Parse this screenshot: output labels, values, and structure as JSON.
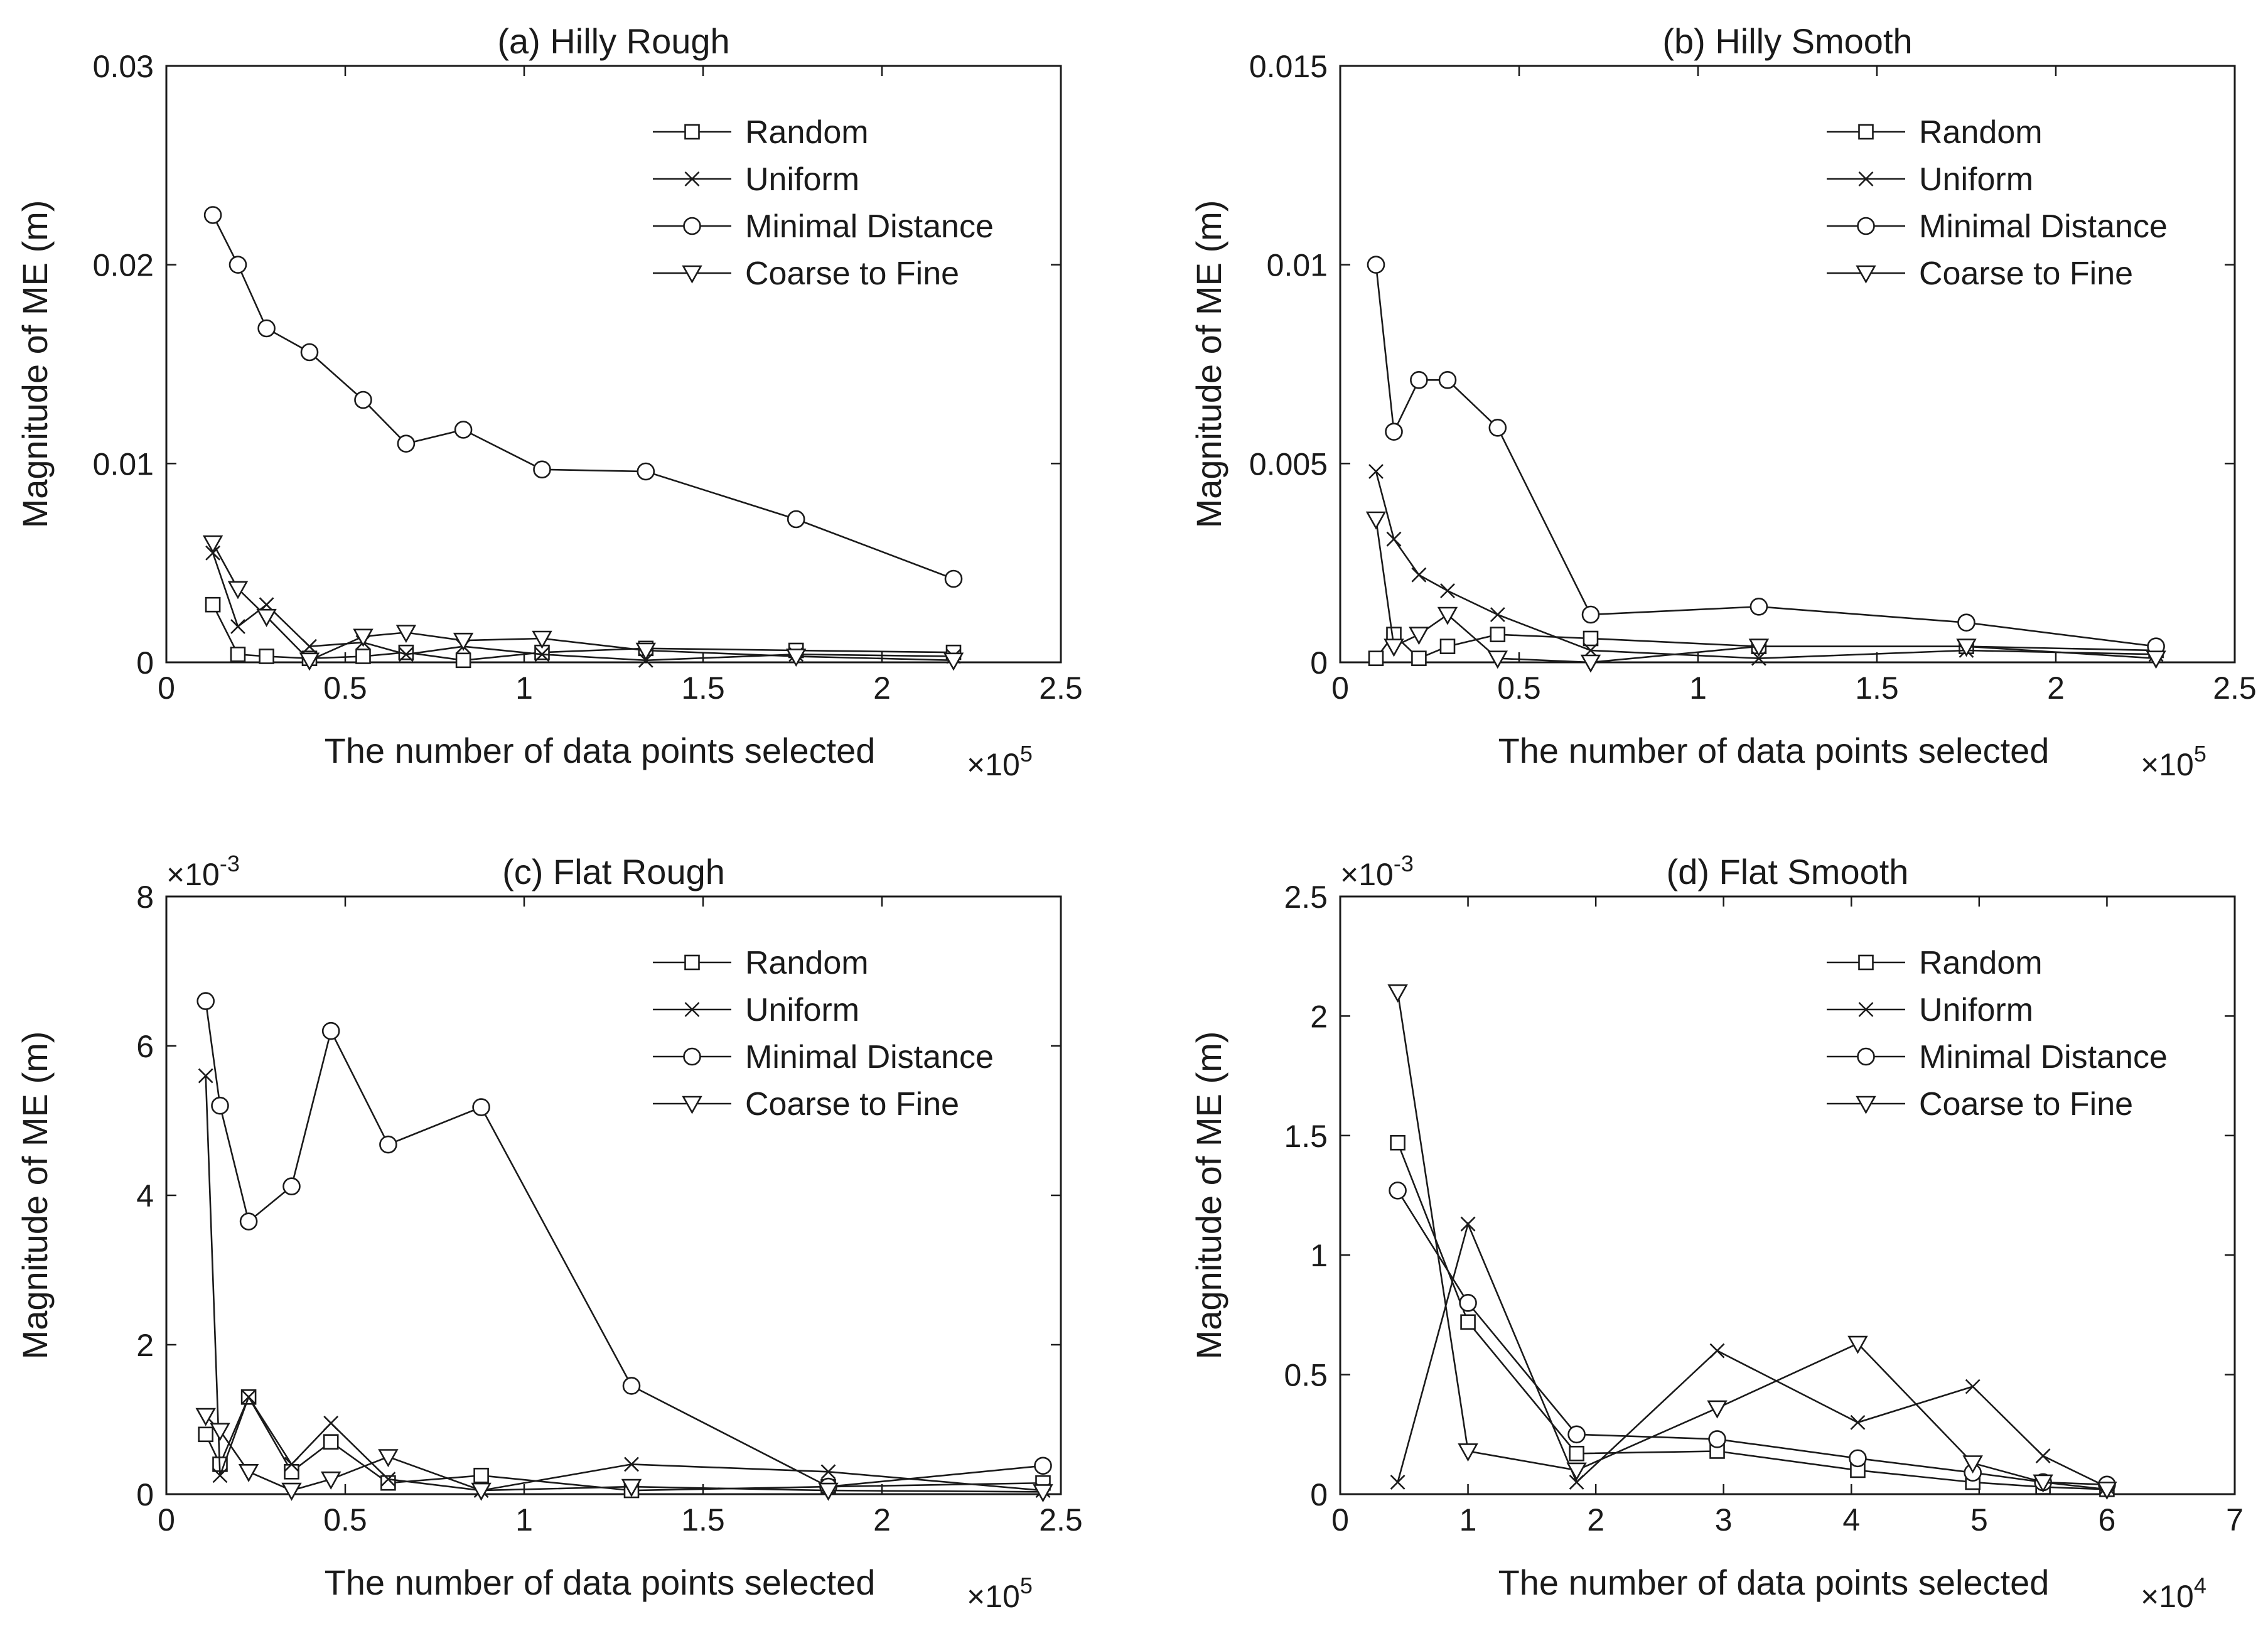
{
  "figure": {
    "ylabel": "Magnitude of ME (m)",
    "xlabel": "The number of data points selected"
  },
  "legend": [
    "Random",
    "Uniform",
    "Minimal Distance",
    "Coarse to Fine"
  ],
  "chart_data": [
    {
      "type": "line",
      "title": "(a) Hilly Rough",
      "xlabel": "The number of data points selected",
      "ylabel": "Magnitude of ME (m)",
      "x_multiplier": "×10^5",
      "x_exp_base": "×10",
      "x_exp_power": "5",
      "y_multiplier": "",
      "xlim": [
        0,
        2.5
      ],
      "ylim": [
        0,
        0.03
      ],
      "xticks": [
        0,
        0.5,
        1,
        1.5,
        2,
        2.5
      ],
      "xtick_labels": [
        "0",
        "0.5",
        "1",
        "1.5",
        "2",
        "2.5"
      ],
      "yticks": [
        0,
        0.01,
        0.02,
        0.03
      ],
      "ytick_labels": [
        "0",
        "0.01",
        "0.02",
        "0.03"
      ],
      "legend_position": "top-right",
      "series": [
        {
          "name": "Random",
          "marker": "square",
          "x": [
            0.13,
            0.2,
            0.28,
            0.4,
            0.55,
            0.67,
            0.83,
            1.05,
            1.34,
            1.76,
            2.2
          ],
          "y": [
            0.0029,
            0.0004,
            0.0003,
            0.0002,
            0.0003,
            0.0005,
            0.0001,
            0.0005,
            0.0007,
            0.0006,
            0.0005
          ]
        },
        {
          "name": "Uniform",
          "marker": "x",
          "x": [
            0.13,
            0.2,
            0.28,
            0.4,
            0.55,
            0.67,
            0.83,
            1.05,
            1.34,
            1.76,
            2.2
          ],
          "y": [
            0.0055,
            0.0018,
            0.0029,
            0.0008,
            0.001,
            0.0004,
            0.0008,
            0.0004,
            0.0001,
            0.0004,
            0.0003
          ]
        },
        {
          "name": "Minimal Distance",
          "marker": "circle",
          "x": [
            0.13,
            0.2,
            0.28,
            0.4,
            0.55,
            0.67,
            0.83,
            1.05,
            1.34,
            1.76,
            2.2
          ],
          "y": [
            0.0225,
            0.02,
            0.0168,
            0.0156,
            0.0132,
            0.011,
            0.0117,
            0.0097,
            0.0096,
            0.0072,
            0.0042
          ]
        },
        {
          "name": "Coarse to Fine",
          "marker": "triangle-down",
          "x": [
            0.13,
            0.2,
            0.28,
            0.4,
            0.55,
            0.67,
            0.83,
            1.05,
            1.34,
            1.76,
            2.2
          ],
          "y": [
            0.006,
            0.0037,
            0.0023,
            0.0001,
            0.0013,
            0.0015,
            0.0011,
            0.0012,
            0.0006,
            0.0003,
            0.0001
          ]
        }
      ]
    },
    {
      "type": "line",
      "title": "(b) Hilly Smooth",
      "xlabel": "The number of data points selected",
      "ylabel": "Magnitude of ME (m)",
      "x_multiplier": "×10^5",
      "x_exp_base": "×10",
      "x_exp_power": "5",
      "y_multiplier": "",
      "xlim": [
        0,
        2.5
      ],
      "ylim": [
        0,
        0.015
      ],
      "xticks": [
        0,
        0.5,
        1,
        1.5,
        2,
        2.5
      ],
      "xtick_labels": [
        "0",
        "0.5",
        "1",
        "1.5",
        "2",
        "2.5"
      ],
      "yticks": [
        0,
        0.005,
        0.01,
        0.015
      ],
      "ytick_labels": [
        "0",
        "0.005",
        "0.01",
        "0.015"
      ],
      "legend_position": "top-right",
      "series": [
        {
          "name": "Random",
          "marker": "square",
          "x": [
            0.1,
            0.15,
            0.22,
            0.3,
            0.44,
            0.7,
            1.17,
            1.75,
            2.28
          ],
          "y": [
            0.0001,
            0.0007,
            0.0001,
            0.0004,
            0.0007,
            0.0006,
            0.0004,
            0.0004,
            0.0003
          ]
        },
        {
          "name": "Uniform",
          "marker": "x",
          "x": [
            0.1,
            0.15,
            0.22,
            0.3,
            0.44,
            0.7,
            1.17,
            1.75,
            2.28
          ],
          "y": [
            0.0048,
            0.0031,
            0.0022,
            0.0018,
            0.0012,
            0.0003,
            0.0001,
            0.0003,
            0.0002
          ]
        },
        {
          "name": "Minimal Distance",
          "marker": "circle",
          "x": [
            0.1,
            0.15,
            0.22,
            0.3,
            0.44,
            0.7,
            1.17,
            1.75,
            2.28
          ],
          "y": [
            0.01,
            0.0058,
            0.0071,
            0.0071,
            0.0059,
            0.0012,
            0.0014,
            0.001,
            0.0004
          ]
        },
        {
          "name": "Coarse to Fine",
          "marker": "triangle-down",
          "x": [
            0.1,
            0.15,
            0.22,
            0.3,
            0.44,
            0.7,
            1.17,
            1.75,
            2.28
          ],
          "y": [
            0.0036,
            0.0004,
            0.0007,
            0.0012,
            0.0001,
            0.0,
            0.0004,
            0.0004,
            0.0001
          ]
        }
      ]
    },
    {
      "type": "line",
      "title": "(c) Flat Rough",
      "xlabel": "The number of data points selected",
      "ylabel": "Magnitude of ME (m)",
      "x_multiplier": "×10^5",
      "x_exp_base": "×10",
      "x_exp_power": "5",
      "y_multiplier": "×10^-3",
      "y_exp_base": "×10",
      "y_exp_power": "-3",
      "xlim": [
        0,
        2.5
      ],
      "ylim": [
        0,
        8
      ],
      "xticks": [
        0,
        0.5,
        1,
        1.5,
        2,
        2.5
      ],
      "xtick_labels": [
        "0",
        "0.5",
        "1",
        "1.5",
        "2",
        "2.5"
      ],
      "yticks": [
        0,
        2,
        4,
        6,
        8
      ],
      "ytick_labels": [
        "0",
        "2",
        "4",
        "6",
        "8"
      ],
      "legend_position": "top-right",
      "series": [
        {
          "name": "Random",
          "marker": "square",
          "x": [
            0.11,
            0.15,
            0.23,
            0.35,
            0.46,
            0.62,
            0.88,
            1.3,
            1.85,
            2.45
          ],
          "y": [
            0.8,
            0.4,
            1.3,
            0.3,
            0.7,
            0.15,
            0.25,
            0.05,
            0.1,
            0.15
          ]
        },
        {
          "name": "Uniform",
          "marker": "x",
          "x": [
            0.11,
            0.15,
            0.23,
            0.35,
            0.46,
            0.62,
            0.88,
            1.3,
            1.85,
            2.45
          ],
          "y": [
            5.6,
            0.25,
            1.3,
            0.4,
            0.95,
            0.2,
            0.05,
            0.4,
            0.3,
            0.05
          ]
        },
        {
          "name": "Minimal Distance",
          "marker": "circle",
          "x": [
            0.11,
            0.15,
            0.23,
            0.35,
            0.46,
            0.62,
            0.88,
            1.3,
            1.85,
            2.45
          ],
          "y": [
            6.6,
            5.2,
            3.65,
            4.12,
            6.2,
            4.68,
            5.18,
            1.45,
            0.1,
            0.38
          ]
        },
        {
          "name": "Coarse to Fine",
          "marker": "triangle-down",
          "x": [
            0.11,
            0.15,
            0.23,
            0.35,
            0.46,
            0.62,
            0.88,
            1.3,
            1.85,
            2.45
          ],
          "y": [
            1.05,
            0.85,
            0.3,
            0.05,
            0.2,
            0.5,
            0.05,
            0.1,
            0.05,
            0.03
          ]
        }
      ]
    },
    {
      "type": "line",
      "title": "(d) Flat Smooth",
      "xlabel": "The number of data points selected",
      "ylabel": "Magnitude of ME (m)",
      "x_multiplier": "×10^4",
      "x_exp_base": "×10",
      "x_exp_power": "4",
      "y_multiplier": "×10^-3",
      "y_exp_base": "×10",
      "y_exp_power": "-3",
      "xlim": [
        0,
        7
      ],
      "ylim": [
        0,
        2.5
      ],
      "xticks": [
        0,
        1,
        2,
        3,
        4,
        5,
        6,
        7
      ],
      "xtick_labels": [
        "0",
        "1",
        "2",
        "3",
        "4",
        "5",
        "6",
        "7"
      ],
      "yticks": [
        0,
        0.5,
        1,
        1.5,
        2,
        2.5
      ],
      "ytick_labels": [
        "0",
        "0.5",
        "1",
        "1.5",
        "2",
        "2.5"
      ],
      "legend_position": "top-right",
      "series": [
        {
          "name": "Random",
          "marker": "square",
          "x": [
            0.45,
            1.0,
            1.85,
            2.95,
            4.05,
            4.95,
            5.5,
            6.0
          ],
          "y": [
            1.47,
            0.72,
            0.17,
            0.18,
            0.1,
            0.05,
            0.03,
            0.02
          ]
        },
        {
          "name": "Uniform",
          "marker": "x",
          "x": [
            0.45,
            1.0,
            1.85,
            2.95,
            4.05,
            4.95,
            5.5,
            6.0
          ],
          "y": [
            0.05,
            1.13,
            0.05,
            0.6,
            0.3,
            0.45,
            0.16,
            0.03
          ]
        },
        {
          "name": "Minimal Distance",
          "marker": "circle",
          "x": [
            0.45,
            1.0,
            1.85,
            2.95,
            4.05,
            4.95,
            5.5,
            6.0
          ],
          "y": [
            1.27,
            0.8,
            0.25,
            0.23,
            0.15,
            0.09,
            0.05,
            0.04
          ]
        },
        {
          "name": "Coarse to Fine",
          "marker": "triangle-down",
          "x": [
            0.45,
            1.0,
            1.85,
            2.95,
            4.05,
            4.95,
            5.5,
            6.0
          ],
          "y": [
            2.1,
            0.18,
            0.1,
            0.36,
            0.63,
            0.13,
            0.05,
            0.02
          ]
        }
      ]
    }
  ]
}
